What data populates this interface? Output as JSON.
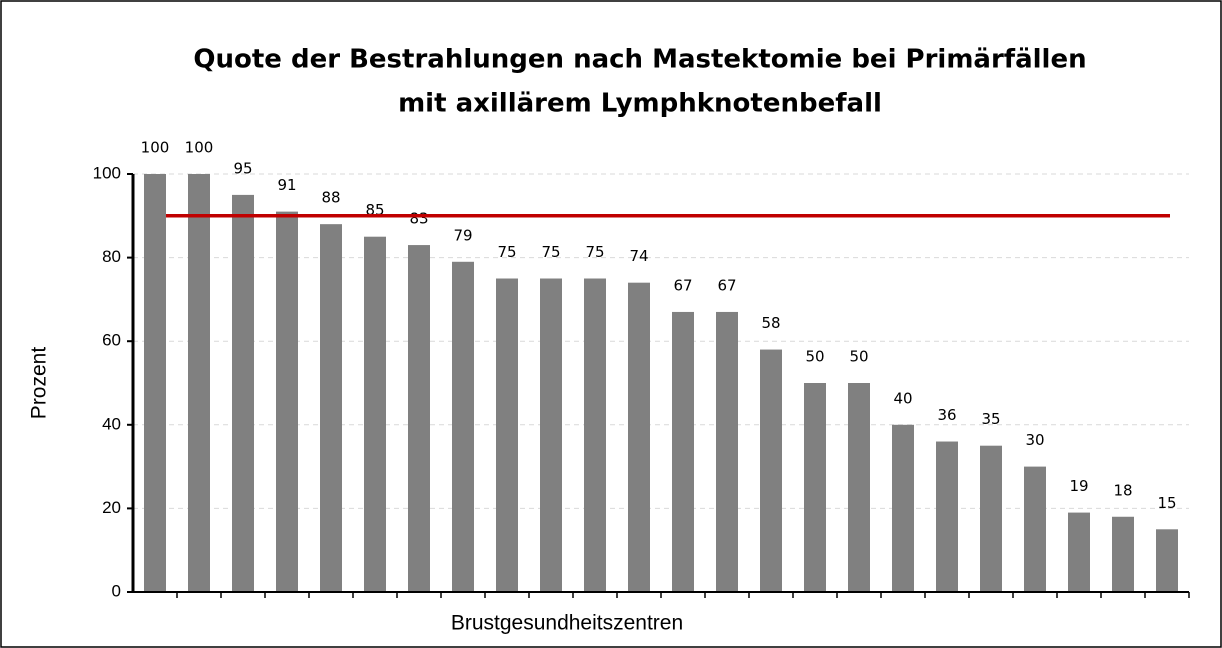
{
  "chart_data": {
    "type": "bar",
    "title": [
      "Quote der Bestrahlungen nach Mastektomie bei Primärfällen",
      "mit axillärem Lymphknotenbefall"
    ],
    "x_label": "Brustgesundheitszentren",
    "y_label": "Prozent",
    "categories": [
      null,
      null,
      null,
      null,
      null,
      null,
      null,
      null,
      null,
      null,
      null,
      null,
      null,
      null,
      null,
      null,
      null,
      null,
      null,
      null,
      null,
      null,
      null,
      null
    ],
    "values": [
      100,
      100,
      95,
      91,
      88,
      85,
      83,
      79,
      75,
      75,
      75,
      74,
      67,
      67,
      58,
      50,
      50,
      40,
      36,
      35,
      30,
      19,
      18,
      15
    ],
    "color": "#808080",
    "ylim": [
      0,
      100
    ],
    "yticks": [
      0,
      20,
      40,
      60,
      80,
      100
    ],
    "grid": true,
    "reference_line": {
      "value": 90,
      "color": "#c00000"
    }
  }
}
